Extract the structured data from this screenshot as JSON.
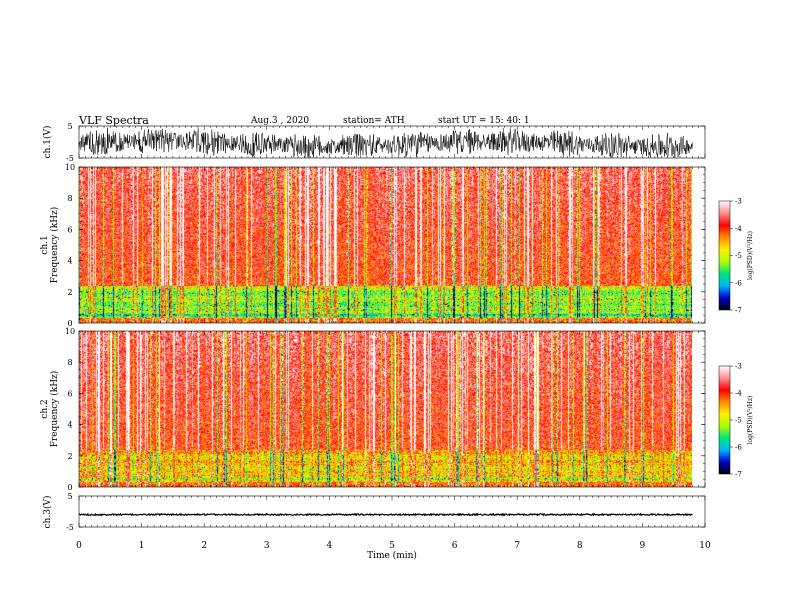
{
  "header": {
    "title": "VLF  Spectra",
    "date": "Aug.3  , 2020",
    "station": "station= ATH",
    "start": "start  UT  =    15: 40: 1"
  },
  "chart_data": [
    {
      "type": "line",
      "panel": "ch1-waveform",
      "ylabel": "ch.1(V)",
      "ylim": [
        -5,
        5
      ],
      "yticks": [
        "5",
        "-5"
      ],
      "xlim": [
        0,
        10
      ],
      "x_end": 9.8
    },
    {
      "type": "heatmap",
      "panel": "ch1-spectrogram",
      "ylabel_line1": "ch.1",
      "ylabel_line2": "Frequency  (kHz)",
      "ylim": [
        0,
        10
      ],
      "yticks": [
        "0",
        "2",
        "4",
        "6",
        "8",
        "10"
      ],
      "xlim": [
        0,
        10
      ],
      "x_end": 9.8,
      "colorbar": {
        "label": "log(PSD)(V²/Hz)",
        "range": [
          -7,
          -3
        ],
        "ticks": [
          "-3",
          "-4",
          "-5",
          "-6",
          "-7"
        ],
        "colors": [
          "#000000",
          "#0000cc",
          "#00b4ff",
          "#00e676",
          "#aaff00",
          "#ffee00",
          "#ff8c00",
          "#ff0000",
          "#ff9090",
          "#ffffff"
        ]
      }
    },
    {
      "type": "heatmap",
      "panel": "ch2-spectrogram",
      "ylabel_line1": "ch.2",
      "ylabel_line2": "Frequency  (kHz)",
      "ylim": [
        0,
        10
      ],
      "yticks": [
        "0",
        "2",
        "4",
        "6",
        "8",
        "10"
      ],
      "xlim": [
        0,
        10
      ],
      "x_end": 9.8,
      "colorbar": {
        "label": "log(PSD)(V²/Hz)",
        "range": [
          -7,
          -3
        ],
        "ticks": [
          "-3",
          "-4",
          "-5",
          "-6",
          "-7"
        ],
        "colors": [
          "#000000",
          "#0000cc",
          "#00b4ff",
          "#00e676",
          "#aaff00",
          "#ffee00",
          "#ff8c00",
          "#ff0000",
          "#ff9090",
          "#ffffff"
        ]
      }
    },
    {
      "type": "line",
      "panel": "ch3-waveform",
      "ylabel": "ch.3(V)",
      "ylim": [
        -5,
        5
      ],
      "yticks": [
        "5",
        "-5"
      ],
      "xlim": [
        0,
        10
      ],
      "x_end": 9.8,
      "level": -1
    }
  ],
  "xaxis": {
    "label": "Time  (min)",
    "ticks": [
      "0",
      "1",
      "2",
      "3",
      "4",
      "5",
      "6",
      "7",
      "8",
      "9",
      "10"
    ]
  }
}
